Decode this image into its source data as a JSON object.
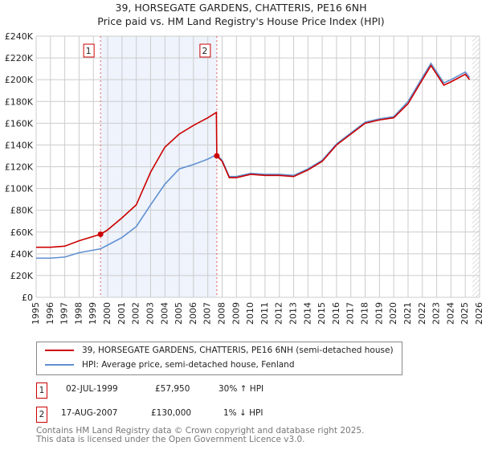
{
  "chart_data": {
    "type": "line",
    "title": "39, HORSEGATE GARDENS, CHATTERIS, PE16 6NH",
    "subtitle": "Price paid vs. HM Land Registry's House Price Index (HPI)",
    "xlim": [
      1995,
      2026
    ],
    "ylim": [
      0,
      240000
    ],
    "x_ticks": [
      "1995",
      "1996",
      "1997",
      "1998",
      "1999",
      "2000",
      "2001",
      "2002",
      "2003",
      "2004",
      "2005",
      "2006",
      "2007",
      "2008",
      "2009",
      "2010",
      "2011",
      "2012",
      "2013",
      "2014",
      "2015",
      "2016",
      "2017",
      "2018",
      "2019",
      "2020",
      "2021",
      "2022",
      "2023",
      "2024",
      "2025",
      "2026"
    ],
    "y_ticks": [
      "£0",
      "£20K",
      "£40K",
      "£60K",
      "£80K",
      "£100K",
      "£120K",
      "£140K",
      "£160K",
      "£180K",
      "£200K",
      "£220K",
      "£240K"
    ],
    "grid": true,
    "series": [
      {
        "name": "39, HORSEGATE GARDENS, CHATTERIS, PE16 6NH (semi-detached house)",
        "color": "#cc0000",
        "x": [
          1995,
          1996,
          1997,
          1998,
          1999.5,
          2000,
          2001,
          2002,
          2003,
          2004,
          2005,
          2006,
          2007,
          2007.6,
          2007.63,
          2008,
          2008.5,
          2009,
          2010,
          2011,
          2012,
          2013,
          2014,
          2015,
          2016,
          2017,
          2018,
          2019,
          2020,
          2021,
          2022,
          2022.6,
          2023,
          2023.5,
          2024,
          2025,
          2025.3
        ],
        "y": [
          46000,
          46000,
          47000,
          52000,
          57950,
          62000,
          73000,
          85000,
          115000,
          138000,
          150000,
          158000,
          165000,
          170000,
          130000,
          125000,
          110000,
          110000,
          113000,
          112000,
          112000,
          111000,
          117000,
          125000,
          140000,
          150000,
          160000,
          163000,
          165000,
          178000,
          200000,
          213000,
          205000,
          195000,
          198000,
          205000,
          200000
        ]
      },
      {
        "name": "HPI: Average price, semi-detached house, Fenland",
        "color": "#6090d0",
        "x": [
          1995,
          1996,
          1997,
          1998,
          1999.5,
          2000,
          2001,
          2002,
          2003,
          2004,
          2005,
          2006,
          2007,
          2007.6,
          2008,
          2008.5,
          2009,
          2010,
          2011,
          2012,
          2013,
          2014,
          2015,
          2016,
          2017,
          2018,
          2019,
          2020,
          2021,
          2022,
          2022.6,
          2023,
          2023.5,
          2024,
          2025,
          2025.3
        ],
        "y": [
          36000,
          36000,
          37000,
          41000,
          44600,
          48000,
          55000,
          65000,
          85000,
          104000,
          118000,
          122000,
          127000,
          131000,
          126000,
          111000,
          111000,
          114000,
          113000,
          113000,
          112000,
          118000,
          126000,
          141000,
          151000,
          161000,
          164000,
          166000,
          180000,
          202000,
          215000,
          207000,
          197000,
          200000,
          207000,
          202000
        ]
      }
    ],
    "sales": [
      {
        "label": "1",
        "x": 1999.5,
        "y": 57950,
        "date": "02-JUL-1999",
        "price": "£57,950",
        "hpi": "30% ↑ HPI"
      },
      {
        "label": "2",
        "x": 2007.63,
        "y": 130000,
        "date": "17-AUG-2007",
        "price": "£130,000",
        "hpi": "1% ↓ HPI"
      }
    ],
    "shaded_range": [
      1999.5,
      2007.63
    ],
    "hatched_from": 2025.5
  },
  "title": "39, HORSEGATE GARDENS, CHATTERIS, PE16 6NH",
  "subtitle": "Price paid vs. HM Land Registry's House Price Index (HPI)",
  "legend": {
    "red": "39, HORSEGATE GARDENS, CHATTERIS, PE16 6NH (semi-detached house)",
    "blue": "HPI: Average price, semi-detached house, Fenland",
    "red_color": "#cc0000",
    "blue_color": "#6090d0"
  },
  "footer": {
    "line1": "Contains HM Land Registry data © Crown copyright and database right 2025.",
    "line2": "This data is licensed under the Open Government Licence v3.0."
  }
}
